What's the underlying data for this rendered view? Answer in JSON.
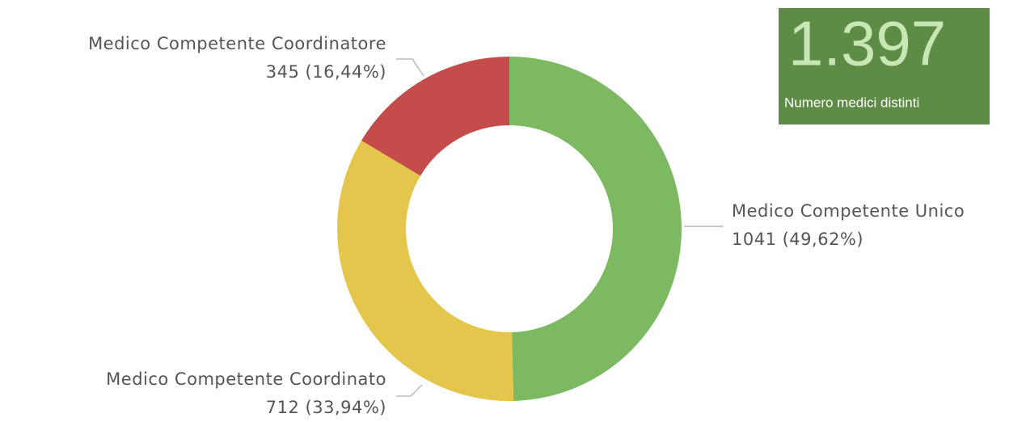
{
  "chart_data": {
    "type": "donut",
    "categories": [
      "Medico Competente Unico",
      "Medico Competente Coordinato",
      "Medico Competente Coordinatore"
    ],
    "values": [
      1041,
      712,
      345
    ],
    "value_labels": [
      "1041 (49,62%)",
      "712 (33,94%)",
      "345 (16,44%)"
    ],
    "colors": [
      "#7db963",
      "#e5c64c",
      "#c44c4a"
    ]
  },
  "card": {
    "value": "1.397",
    "label": "Numero medici distinti",
    "color": "#5e8c46"
  }
}
